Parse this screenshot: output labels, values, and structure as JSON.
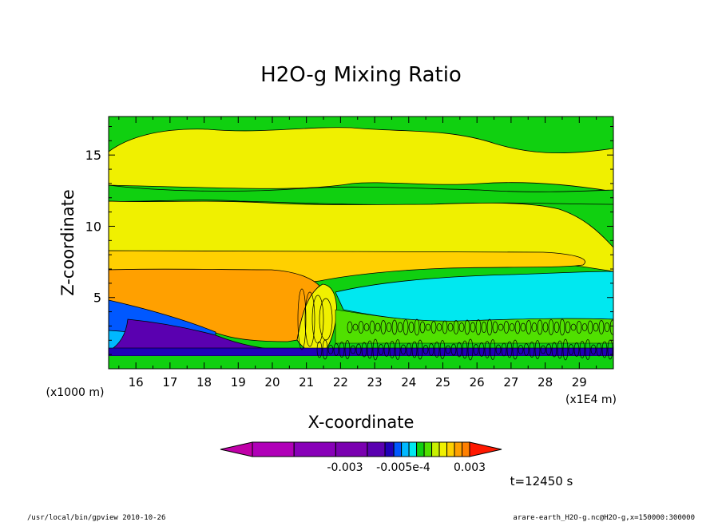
{
  "chart_data": {
    "type": "heatmap",
    "title": "H2O-g Mixing Ratio",
    "xlabel": "X-coordinate",
    "ylabel": "Z-coordinate",
    "x_unit_label": "(x1E4 m)",
    "y_unit_label": "(x1000 m)",
    "xlim": [
      15.2,
      30.0
    ],
    "ylim": [
      0.0,
      17.7
    ],
    "x_ticks": [
      "16",
      "17",
      "18",
      "19",
      "20",
      "21",
      "22",
      "23",
      "24",
      "25",
      "26",
      "27",
      "28",
      "29"
    ],
    "x_tick_values": [
      16,
      17,
      18,
      19,
      20,
      21,
      22,
      23,
      24,
      25,
      26,
      27,
      28,
      29
    ],
    "y_ticks": [
      "5",
      "10",
      "15"
    ],
    "y_tick_values": [
      5,
      10,
      15
    ],
    "colorbar": {
      "colors": [
        "#c000a8",
        "#b000b8",
        "#8800b8",
        "#7a00b0",
        "#5a00b0",
        "#2000b8",
        "#0058ff",
        "#00b8ff",
        "#00e8f0",
        "#10d010",
        "#50e000",
        "#c8f000",
        "#f0f000",
        "#ffd000",
        "#ffa000",
        "#ff8000",
        "#ff1800"
      ],
      "labels": [
        "-0.003",
        "-0.005e-4",
        "0.003"
      ]
    },
    "time_label": "t=12450 s"
  },
  "footer": {
    "left": "/usr/local/bin/gpview  2010-10-26",
    "right": "arare-earth_H2O-g.nc@H2O-g,x=150000:300000"
  }
}
